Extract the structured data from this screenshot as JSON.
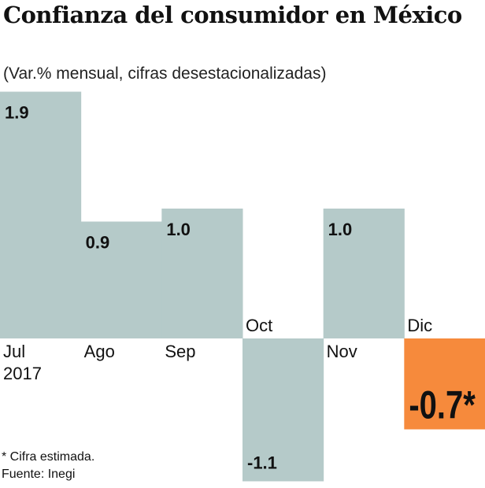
{
  "chart_data": {
    "type": "bar",
    "title": "Confianza del consumidor en México",
    "subtitle": "(Var.% mensual, cifras desestacionalizadas)",
    "categories": [
      "Jul\n2017",
      "Ago",
      "Sep",
      "Oct",
      "Nov",
      "Dic"
    ],
    "values": [
      1.9,
      0.9,
      1.0,
      -1.1,
      1.0,
      -0.7
    ],
    "value_labels": [
      "1.9",
      "0.9",
      "1.0",
      "-1.1",
      "1.0",
      "-0.7*"
    ],
    "highlight_index": 5,
    "colors": {
      "default": "#b5cac9",
      "highlight": "#f68a3c"
    },
    "grid": false,
    "notes": [
      "* Cifra estimada.",
      "Fuente: Inegi"
    ]
  }
}
